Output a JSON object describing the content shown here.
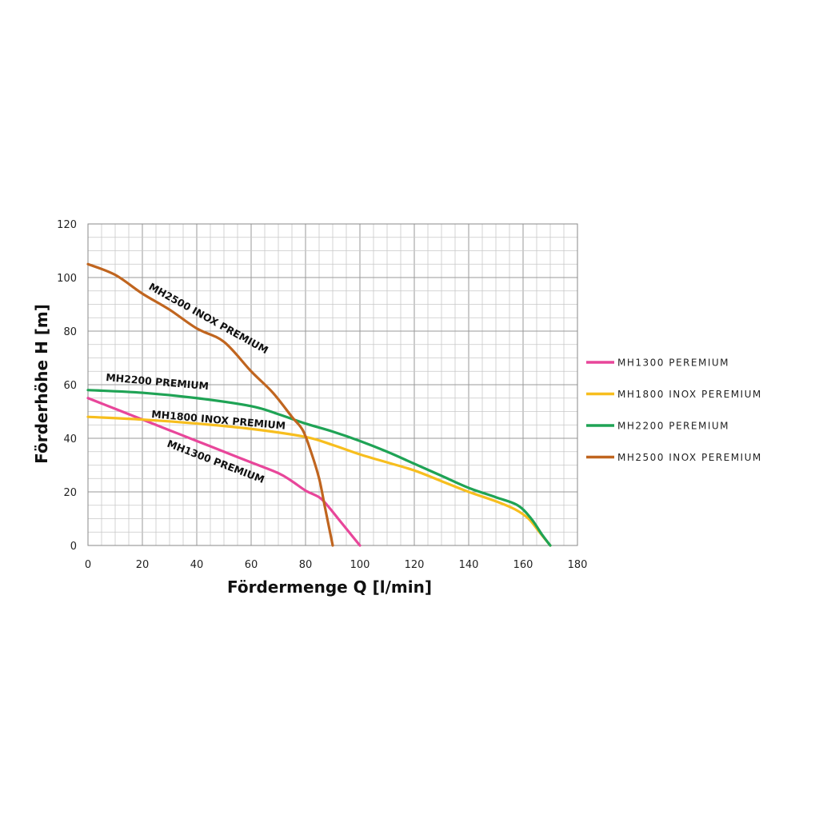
{
  "chart_data": {
    "type": "line",
    "title": "",
    "xlabel": "Fördermenge Q [l/min]",
    "ylabel": "Förderhöhe H [m]",
    "xlim": [
      0,
      180
    ],
    "ylim": [
      0,
      120
    ],
    "x_ticks": [
      0,
      20,
      40,
      60,
      80,
      100,
      120,
      140,
      160,
      180
    ],
    "y_ticks": [
      0,
      20,
      40,
      60,
      80,
      100,
      120
    ],
    "grid": true,
    "legend_position": "right",
    "series": [
      {
        "name": "MH1300 PEREMIUM",
        "curve_label": "MH1300 PREMIUM",
        "color": "#e8469a",
        "points": [
          [
            0,
            55
          ],
          [
            10,
            51
          ],
          [
            20,
            47
          ],
          [
            30,
            43
          ],
          [
            40,
            39
          ],
          [
            50,
            35
          ],
          [
            60,
            31
          ],
          [
            70,
            27
          ],
          [
            75,
            24
          ],
          [
            80,
            20.5
          ],
          [
            85,
            18
          ],
          [
            88,
            15
          ],
          [
            92,
            10
          ],
          [
            96,
            5
          ],
          [
            100,
            0
          ]
        ]
      },
      {
        "name": "MH1800 INOX PEREMIUM",
        "curve_label": "MH1800 INOX PREMIUM",
        "color": "#f7be1e",
        "points": [
          [
            0,
            48
          ],
          [
            20,
            47
          ],
          [
            40,
            45.5
          ],
          [
            60,
            43.5
          ],
          [
            80,
            40.5
          ],
          [
            90,
            37.5
          ],
          [
            100,
            34
          ],
          [
            110,
            31
          ],
          [
            120,
            28
          ],
          [
            130,
            24
          ],
          [
            140,
            20
          ],
          [
            150,
            16.5
          ],
          [
            157,
            13.5
          ],
          [
            162,
            10
          ],
          [
            166,
            5
          ],
          [
            170,
            0
          ]
        ]
      },
      {
        "name": "MH2200 PEREMIUM",
        "curve_label": "MH2200 PREMIUM",
        "color": "#1fa355",
        "points": [
          [
            0,
            58
          ],
          [
            20,
            57
          ],
          [
            40,
            55
          ],
          [
            60,
            52
          ],
          [
            70,
            49
          ],
          [
            80,
            45.5
          ],
          [
            90,
            42.5
          ],
          [
            100,
            39
          ],
          [
            110,
            35
          ],
          [
            120,
            30.5
          ],
          [
            130,
            26
          ],
          [
            140,
            21.5
          ],
          [
            150,
            18
          ],
          [
            158,
            15
          ],
          [
            163,
            10
          ],
          [
            167,
            4
          ],
          [
            170,
            0
          ]
        ]
      },
      {
        "name": "MH2500 INOX PEREMIUM",
        "curve_label": "MH2500 INOX PREMIUM",
        "color": "#c0651f",
        "points": [
          [
            0,
            105
          ],
          [
            10,
            101
          ],
          [
            20,
            94
          ],
          [
            30,
            88
          ],
          [
            40,
            81
          ],
          [
            50,
            76
          ],
          [
            60,
            65
          ],
          [
            68,
            57
          ],
          [
            75,
            48
          ],
          [
            79,
            43
          ],
          [
            82,
            35
          ],
          [
            85,
            25
          ],
          [
            87,
            15
          ],
          [
            89,
            5
          ],
          [
            90,
            0
          ]
        ]
      }
    ]
  }
}
